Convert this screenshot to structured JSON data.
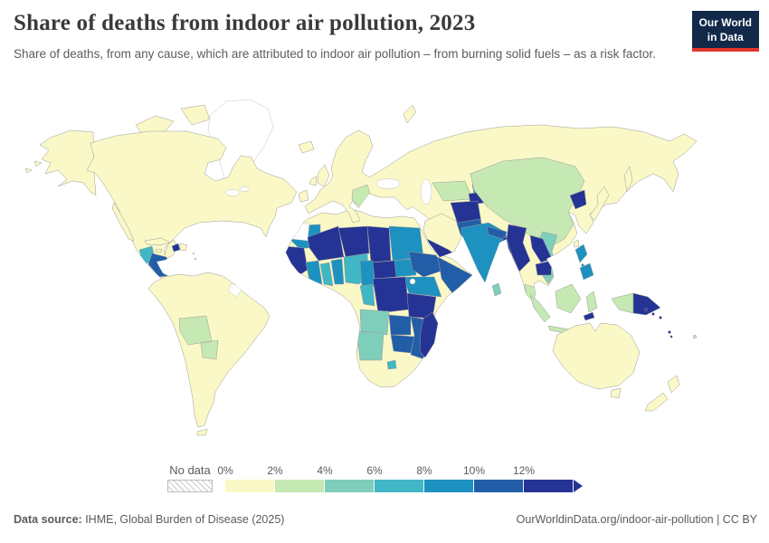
{
  "header": {
    "title": "Share of deaths from indoor air pollution, 2023",
    "subtitle": "Share of deaths, from any cause, which are attributed to indoor air pollution – from burning solid fuels – as a risk factor.",
    "logo": {
      "line1": "Our World",
      "line2": "in Data",
      "bg_color": "#12294a",
      "accent_color": "#e0352c"
    }
  },
  "legend": {
    "no_data_label": "No data",
    "tick_labels": [
      "0%",
      "2%",
      "4%",
      "6%",
      "8%",
      "10%",
      "12%"
    ],
    "colors": [
      "#faf8c6",
      "#c6e8b3",
      "#7fcdbb",
      "#41b6c4",
      "#1d91c0",
      "#225ea8",
      "#253494"
    ]
  },
  "footer": {
    "source_label": "Data source:",
    "source_text": " IHME, Global Burden of Disease (2025)",
    "right_text": "OurWorldinData.org/indoor-air-pollution | CC BY"
  },
  "chart_data": {
    "type": "choropleth_map",
    "title": "Share of deaths from indoor air pollution, 2023",
    "unit": "%",
    "legend_note": "share of deaths attributed to indoor air pollution from burning solid fuels",
    "band_colors": {
      "0-2%": "#faf8c6",
      "2-4%": "#c6e8b3",
      "4-6%": "#7fcdbb",
      "6-8%": "#41b6c4",
      "8-10%": "#1d91c0",
      "10-12%": "#225ea8",
      "12%+": "#253494",
      "No data": "#ffffff"
    },
    "regions": {
      "north-america": {
        "name": "Canada, United States & Mexico",
        "band": "0-2%"
      },
      "greenland": {
        "name": "Greenland",
        "band": "No data"
      },
      "cuba": {
        "name": "Cuba",
        "band": "0-2%"
      },
      "jamaica": {
        "name": "Jamaica",
        "band": "0-2%"
      },
      "haiti": {
        "name": "Haiti",
        "band": "12%+"
      },
      "dominican-republic": {
        "name": "Dominican Republic",
        "band": "0-2%"
      },
      "lesser-antilles": {
        "name": "Lesser Antilles",
        "band": "0-2%"
      },
      "guatemala": {
        "name": "Guatemala",
        "band": "6-8%"
      },
      "honduras-nicaragua": {
        "name": "Honduras & Nicaragua",
        "band": "10-12%"
      },
      "south-america": {
        "name": "South America (Brazil, Argentina, Colombia, Peru, Chile, Venezuela, Ecuador)",
        "band": "0-2%"
      },
      "bolivia": {
        "name": "Bolivia",
        "band": "2-4%"
      },
      "paraguay": {
        "name": "Paraguay",
        "band": "2-4%"
      },
      "french-guiana": {
        "name": "French Guiana",
        "band": "No data"
      },
      "eurasia": {
        "name": "Europe, Russia & Western Asia (Turkey, Kazakhstan, Iran, Iraq, Thailand, South Korea)",
        "band": "0-2%"
      },
      "united-kingdom": {
        "name": "United Kingdom",
        "band": "0-2%"
      },
      "ireland": {
        "name": "Ireland",
        "band": "0-2%"
      },
      "iceland": {
        "name": "Iceland",
        "band": "0-2%"
      },
      "balkans": {
        "name": "Bosnia & Herzegovina, Serbia, Albania, North Macedonia",
        "band": "2-4%"
      },
      "arabian-peninsula": {
        "name": "Saudi Arabia & Oman",
        "band": "0-2%"
      },
      "yemen": {
        "name": "Yemen",
        "band": "12%+"
      },
      "uzbekistan-turkmenistan": {
        "name": "Uzbekistan & Turkmenistan",
        "band": "2-4%"
      },
      "kyrgyzstan": {
        "name": "Kyrgyzstan",
        "band": "8-10%"
      },
      "tajikistan": {
        "name": "Tajikistan",
        "band": "12%+"
      },
      "afghanistan": {
        "name": "Afghanistan",
        "band": "12%+"
      },
      "pakistan": {
        "name": "Pakistan",
        "band": "10-12%"
      },
      "india": {
        "name": "India",
        "band": "8-10%"
      },
      "nepal": {
        "name": "Nepal",
        "band": "10-12%"
      },
      "bangladesh": {
        "name": "Bangladesh",
        "band": "12%+"
      },
      "sri-lanka": {
        "name": "Sri Lanka",
        "band": "4-6%"
      },
      "china": {
        "name": "China & Mongolia",
        "band": "2-4%"
      },
      "north-korea": {
        "name": "North Korea",
        "band": "12%+"
      },
      "japan": {
        "name": "Japan",
        "band": "0-2%"
      },
      "taiwan": {
        "name": "Taiwan",
        "band": "0-2%"
      },
      "myanmar": {
        "name": "Myanmar",
        "band": "12%+"
      },
      "laos": {
        "name": "Laos",
        "band": "12%+"
      },
      "cambodia": {
        "name": "Cambodia",
        "band": "12%+"
      },
      "vietnam": {
        "name": "Vietnam",
        "band": "4-6%"
      },
      "malaysia": {
        "name": "Malaysia",
        "band": "2-4%"
      },
      "indonesia": {
        "name": "Indonesia",
        "band": "2-4%"
      },
      "philippines": {
        "name": "Philippines",
        "band": "8-10%"
      },
      "timor-leste": {
        "name": "Timor-Leste",
        "band": "12%+"
      },
      "papua-new-guinea": {
        "name": "Papua New Guinea",
        "band": "12%+"
      },
      "solomon-islands": {
        "name": "Solomon Islands",
        "band": "12%+"
      },
      "vanuatu": {
        "name": "Vanuatu",
        "band": "12%+"
      },
      "fiji": {
        "name": "Fiji",
        "band": "2-4%"
      },
      "australia": {
        "name": "Australia",
        "band": "0-2%"
      },
      "new-zealand": {
        "name": "New Zealand",
        "band": "0-2%"
      },
      "northern-southern-africa": {
        "name": "Morocco, Algeria, Tunisia, Libya, Egypt, Gabon, Botswana, South Africa",
        "band": "0-2%"
      },
      "western-sahara": {
        "name": "Western Sahara",
        "band": "No data"
      },
      "mauritania": {
        "name": "Mauritania",
        "band": "8-10%"
      },
      "mali": {
        "name": "Mali & Burkina Faso",
        "band": "12%+"
      },
      "senegal-guinea": {
        "name": "Senegal, Gambia, Guinea, Sierra Leone & Liberia",
        "band": "12%+"
      },
      "cote-divoire": {
        "name": "Côte d'Ivoire",
        "band": "8-10%"
      },
      "ghana": {
        "name": "Ghana",
        "band": "6-8%"
      },
      "togo-benin": {
        "name": "Togo & Benin",
        "band": "8-10%"
      },
      "niger": {
        "name": "Niger",
        "band": "12%+"
      },
      "nigeria": {
        "name": "Nigeria",
        "band": "6-8%"
      },
      "chad": {
        "name": "Chad",
        "band": "12%+"
      },
      "sudan": {
        "name": "Sudan",
        "band": "8-10%"
      },
      "south-sudan": {
        "name": "South Sudan",
        "band": "8-10%"
      },
      "ethiopia": {
        "name": "Ethiopia",
        "band": "10-12%"
      },
      "somalia": {
        "name": "Somalia",
        "band": "10-12%"
      },
      "cameroon": {
        "name": "Cameroon",
        "band": "8-10%"
      },
      "central-african-republic": {
        "name": "Central African Republic",
        "band": "12%+"
      },
      "uganda-kenya": {
        "name": "Uganda & Kenya",
        "band": "8-10%"
      },
      "dr-congo": {
        "name": "Democratic Republic of Congo",
        "band": "12%+"
      },
      "congo": {
        "name": "Congo",
        "band": "6-8%"
      },
      "tanzania": {
        "name": "Tanzania",
        "band": "12%+"
      },
      "angola": {
        "name": "Angola",
        "band": "4-6%"
      },
      "zambia": {
        "name": "Zambia",
        "band": "10-12%"
      },
      "malawi-mozambique": {
        "name": "Malawi & Mozambique",
        "band": "10-12%"
      },
      "zimbabwe": {
        "name": "Zimbabwe",
        "band": "10-12%"
      },
      "namibia": {
        "name": "Namibia",
        "band": "4-6%"
      },
      "lesotho": {
        "name": "Lesotho",
        "band": "6-8%"
      },
      "madagascar": {
        "name": "Madagascar",
        "band": "12%+"
      }
    }
  }
}
